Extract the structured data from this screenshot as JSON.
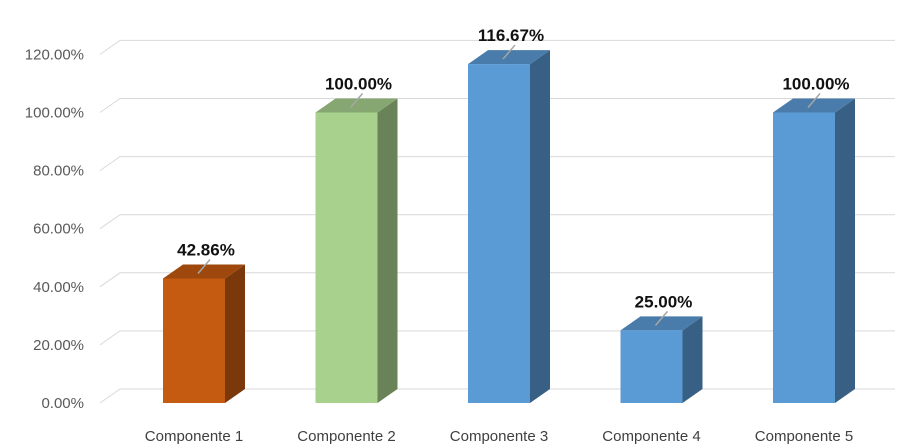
{
  "chart_data": {
    "type": "bar",
    "categories": [
      "Componente 1",
      "Componente 2",
      "Componente 3",
      "Componente 4",
      "Componente 5"
    ],
    "values": [
      42.86,
      100.0,
      116.67,
      25.0,
      100.0
    ],
    "data_labels": [
      "42.86%",
      "100.00%",
      "116.67%",
      "25.00%",
      "100.00%"
    ],
    "y_ticks": [
      "0.00%",
      "20.00%",
      "40.00%",
      "60.00%",
      "80.00%",
      "100.00%",
      "120.00%"
    ],
    "ylim": [
      0,
      120
    ],
    "grid": true,
    "bar_colors": [
      "#c55a11",
      "#a9d18e",
      "#5b9bd5",
      "#5b9bd5",
      "#5b9bd5"
    ],
    "style": "3d-column"
  }
}
